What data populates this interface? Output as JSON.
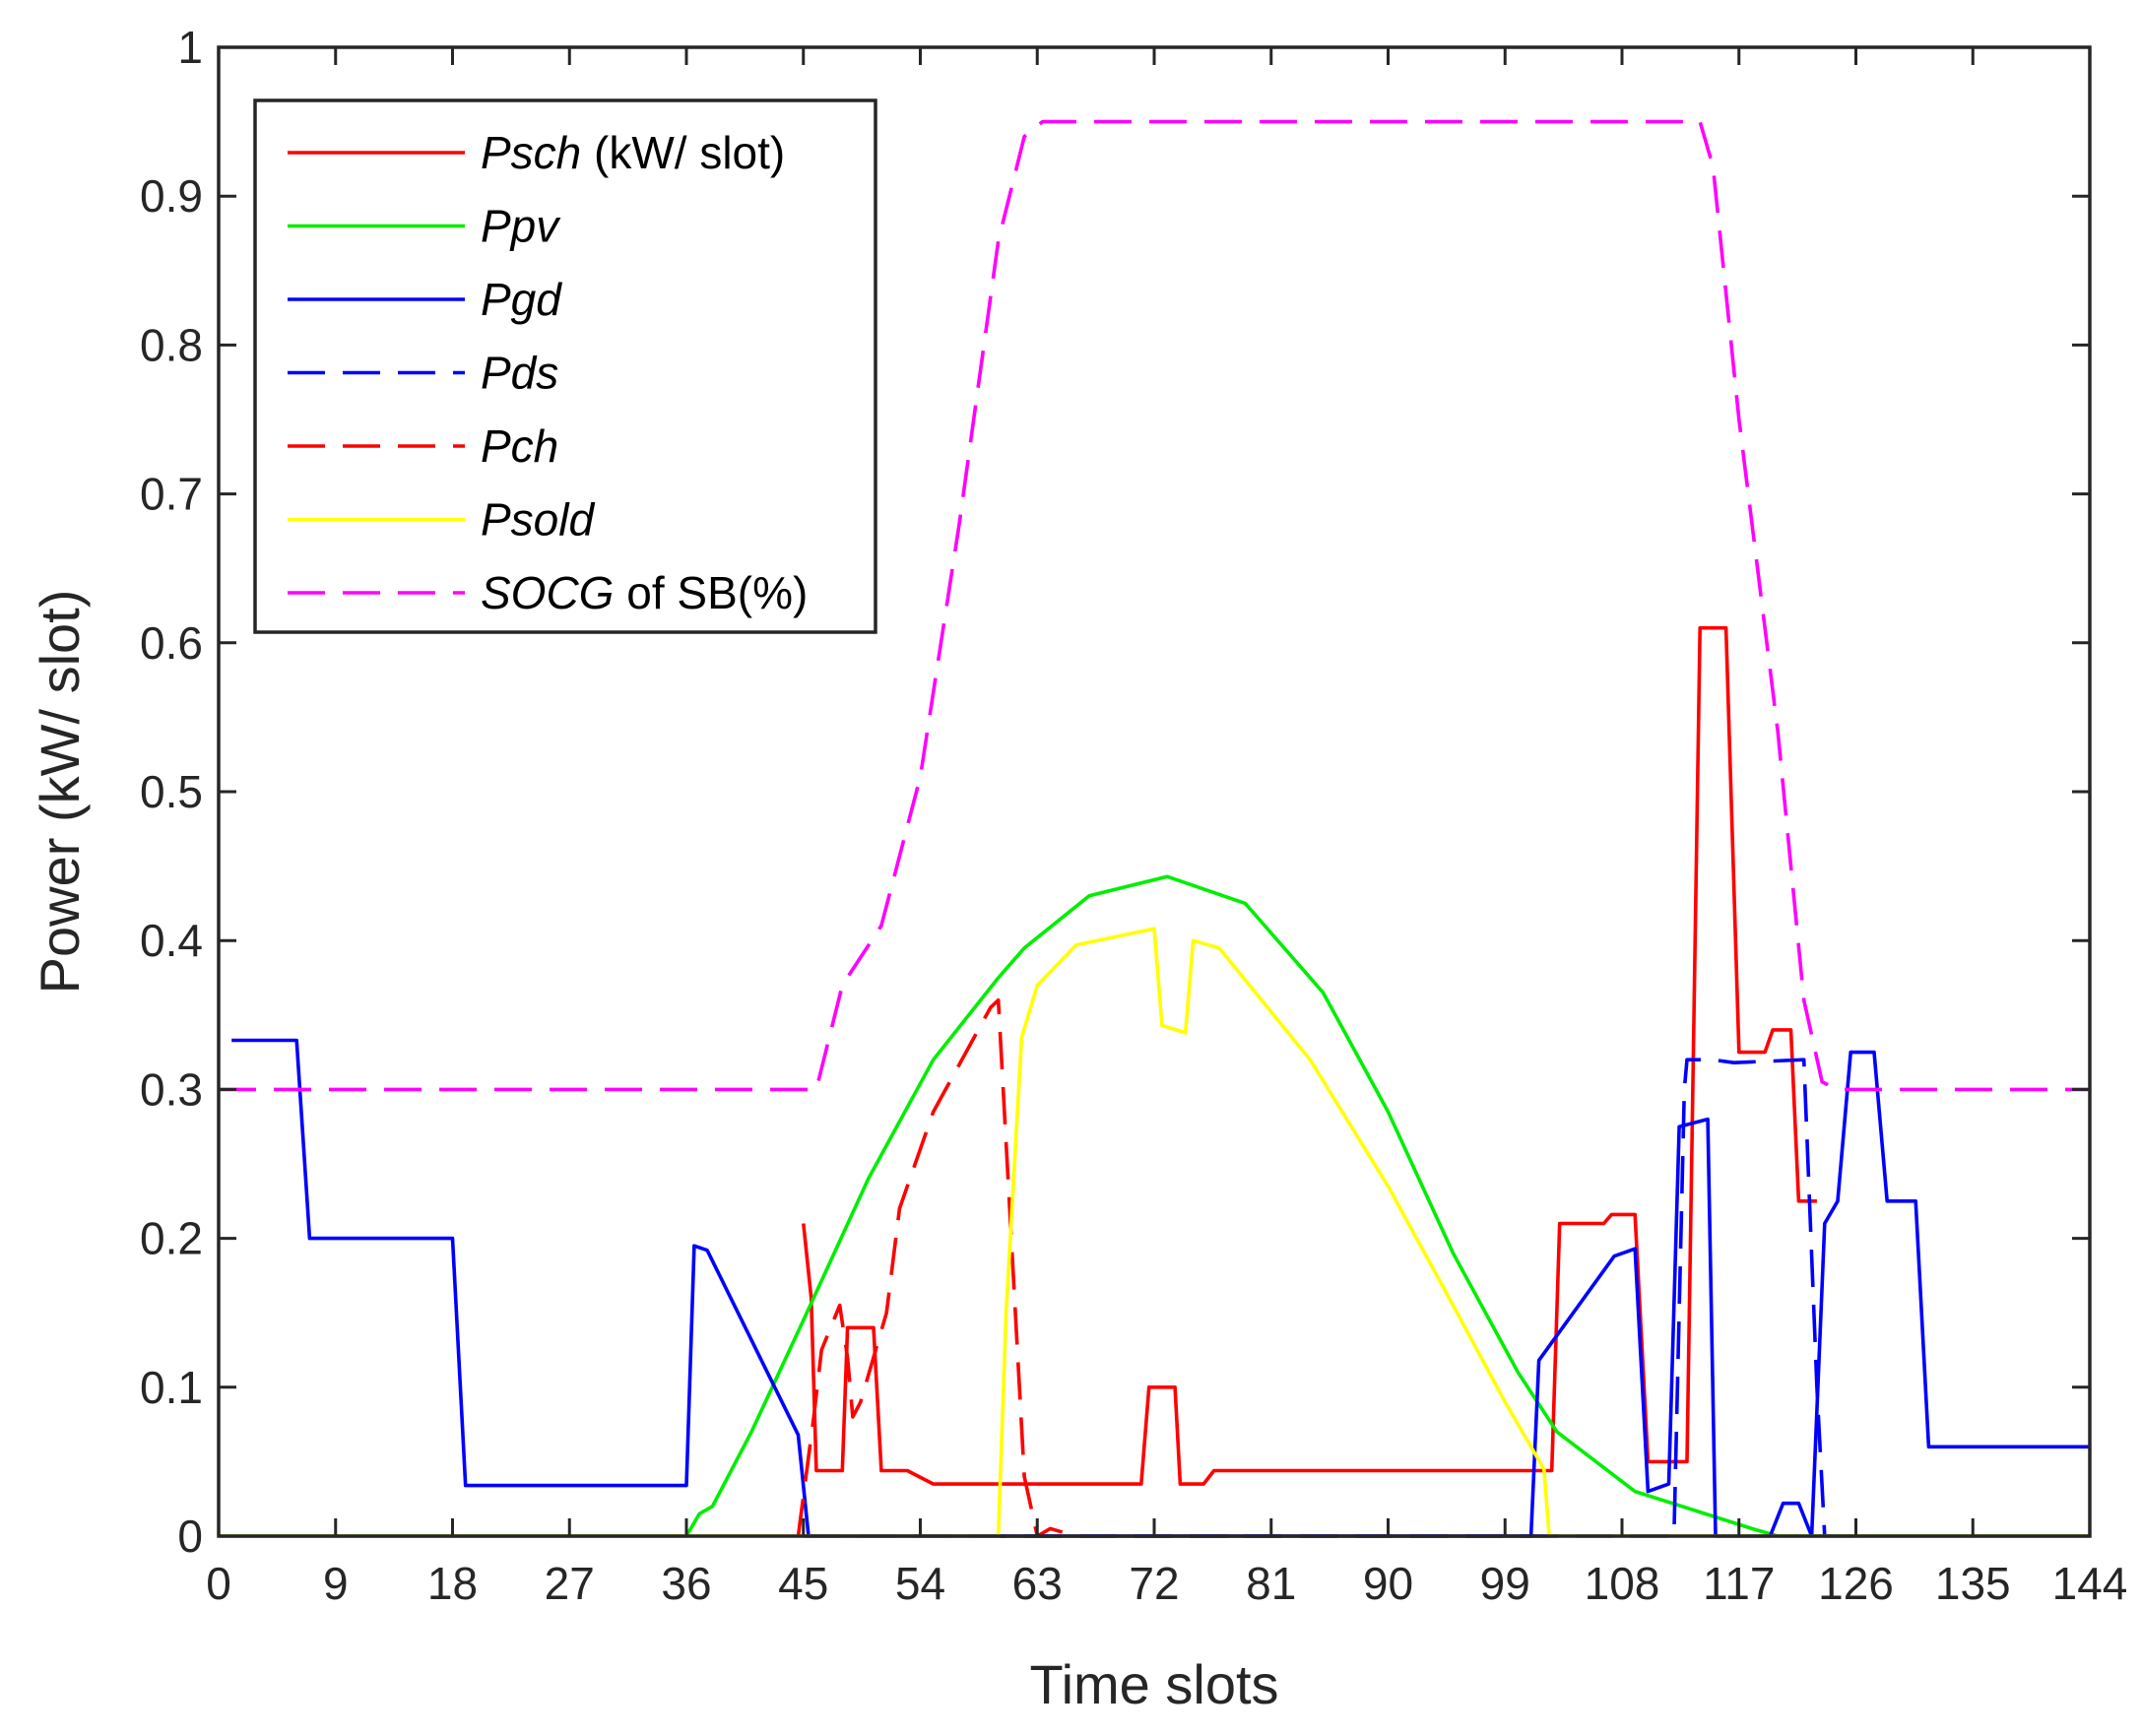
{
  "chart_data": {
    "type": "line",
    "title": "",
    "xlabel": "Time slots",
    "ylabel": "Power (kW/ slot)",
    "xlim": [
      0,
      144
    ],
    "ylim": [
      0,
      1
    ],
    "xticks": [
      0,
      9,
      18,
      27,
      36,
      45,
      54,
      63,
      72,
      81,
      90,
      99,
      108,
      117,
      126,
      135,
      144
    ],
    "yticks": [
      0,
      0.1,
      0.2,
      0.3,
      0.4,
      0.5,
      0.6,
      0.7,
      0.8,
      0.9,
      1
    ],
    "ytick_labels": [
      "0",
      "0.1",
      "0.2",
      "0.3",
      "0.4",
      "0.5",
      "0.6",
      "0.7",
      "0.8",
      "0.9",
      "1"
    ],
    "legend_position": "top-left",
    "series": [
      {
        "name": "Psch",
        "legend_italic": "Psch",
        "legend_suffix": " (kW/ slot)",
        "color": "#ff0000",
        "style": "solid",
        "points": [
          [
            45,
            0.21
          ],
          [
            45.6,
            0.16
          ],
          [
            46,
            0.044
          ],
          [
            48,
            0.044
          ],
          [
            48.4,
            0.14
          ],
          [
            50.4,
            0.14
          ],
          [
            51,
            0.044
          ],
          [
            53,
            0.044
          ],
          [
            55,
            0.035
          ],
          [
            71,
            0.035
          ],
          [
            71.6,
            0.1
          ],
          [
            73.6,
            0.1
          ],
          [
            74,
            0.035
          ],
          [
            75.8,
            0.035
          ],
          [
            76.6,
            0.044
          ],
          [
            102.6,
            0.044
          ],
          [
            103.2,
            0.21
          ],
          [
            106.6,
            0.21
          ],
          [
            107.2,
            0.216
          ],
          [
            109,
            0.216
          ],
          [
            110,
            0.05
          ],
          [
            113,
            0.05
          ],
          [
            114,
            0.61
          ],
          [
            116,
            0.61
          ],
          [
            117,
            0.325
          ],
          [
            119,
            0.325
          ],
          [
            119.6,
            0.34
          ],
          [
            121,
            0.34
          ],
          [
            121.6,
            0.225
          ],
          [
            123,
            0.225
          ]
        ]
      },
      {
        "name": "Ppv",
        "legend_italic": "Ppv",
        "legend_suffix": "",
        "color": "#00ee00",
        "style": "solid",
        "points": [
          [
            0,
            0
          ],
          [
            36,
            0
          ],
          [
            37,
            0.015
          ],
          [
            38,
            0.02
          ],
          [
            41,
            0.07
          ],
          [
            45,
            0.145
          ],
          [
            50,
            0.24
          ],
          [
            55,
            0.32
          ],
          [
            60,
            0.375
          ],
          [
            62,
            0.395
          ],
          [
            67,
            0.43
          ],
          [
            73,
            0.443
          ],
          [
            79,
            0.425
          ],
          [
            85,
            0.365
          ],
          [
            90,
            0.285
          ],
          [
            95,
            0.19
          ],
          [
            100,
            0.11
          ],
          [
            103,
            0.07
          ],
          [
            109,
            0.03
          ],
          [
            118,
            0.005
          ],
          [
            120,
            0
          ],
          [
            144,
            0
          ]
        ]
      },
      {
        "name": "Pgd",
        "legend_italic": "Pgd",
        "legend_suffix": "",
        "color": "#0000ff",
        "style": "solid",
        "points": [
          [
            1,
            0.333
          ],
          [
            6,
            0.333
          ],
          [
            7,
            0.2
          ],
          [
            18,
            0.2
          ],
          [
            19,
            0.034
          ],
          [
            36,
            0.034
          ],
          [
            36.6,
            0.195
          ],
          [
            37.6,
            0.192
          ],
          [
            44.6,
            0.068
          ],
          [
            45.4,
            0
          ],
          [
            101,
            0
          ],
          [
            101.6,
            0.118
          ],
          [
            107.4,
            0.188
          ],
          [
            109,
            0.193
          ],
          [
            110,
            0.03
          ],
          [
            111.6,
            0.035
          ],
          [
            112.4,
            0.275
          ],
          [
            114.6,
            0.28
          ],
          [
            115.2,
            0
          ],
          [
            119.4,
            0
          ],
          [
            120.4,
            0.022
          ],
          [
            121.6,
            0.022
          ],
          [
            122.6,
            0
          ],
          [
            123.6,
            0.21
          ],
          [
            124.6,
            0.225
          ],
          [
            125.6,
            0.325
          ],
          [
            127.4,
            0.325
          ],
          [
            128.4,
            0.225
          ],
          [
            130.6,
            0.225
          ],
          [
            131.6,
            0.06
          ],
          [
            144,
            0.06
          ]
        ]
      },
      {
        "name": "Pds",
        "legend_italic": "Pds",
        "legend_suffix": "",
        "color": "#0000ff",
        "style": "dashed",
        "points": [
          [
            45,
            0
          ],
          [
            112,
            0
          ],
          [
            112.8,
            0.3
          ],
          [
            113,
            0.32
          ],
          [
            115,
            0.32
          ],
          [
            116.6,
            0.318
          ],
          [
            122,
            0.32
          ],
          [
            123,
            0.1
          ],
          [
            123.6,
            0
          ],
          [
            126,
            0
          ]
        ]
      },
      {
        "name": "Pch",
        "legend_italic": "Pch",
        "legend_suffix": "",
        "color": "#ff0000",
        "style": "dashed",
        "points": [
          [
            44.6,
            0
          ],
          [
            45.8,
            0.08
          ],
          [
            46.4,
            0.125
          ],
          [
            47.8,
            0.155
          ],
          [
            48.4,
            0.12
          ],
          [
            48.8,
            0.08
          ],
          [
            49.4,
            0.09
          ],
          [
            51.4,
            0.15
          ],
          [
            52.4,
            0.22
          ],
          [
            55,
            0.285
          ],
          [
            59.4,
            0.355
          ],
          [
            60,
            0.36
          ],
          [
            61,
            0.2
          ],
          [
            62,
            0.04
          ],
          [
            63,
            0
          ],
          [
            64,
            0.005
          ],
          [
            66,
            0
          ]
        ]
      },
      {
        "name": "Psold",
        "legend_italic": "Psold",
        "legend_suffix": "",
        "color": "#ffff00",
        "style": "solid",
        "points": [
          [
            0,
            0
          ],
          [
            60,
            0
          ],
          [
            60.6,
            0.15
          ],
          [
            61.8,
            0.335
          ],
          [
            63,
            0.37
          ],
          [
            66,
            0.397
          ],
          [
            72,
            0.408
          ],
          [
            72.6,
            0.343
          ],
          [
            74.4,
            0.338
          ],
          [
            75,
            0.4
          ],
          [
            77,
            0.395
          ],
          [
            84,
            0.32
          ],
          [
            90,
            0.235
          ],
          [
            95,
            0.155
          ],
          [
            99,
            0.09
          ],
          [
            102,
            0.045
          ],
          [
            102.4,
            0
          ],
          [
            144,
            0
          ]
        ]
      },
      {
        "name": "SOCG of SB(%)",
        "legend_italic": "SOCG",
        "legend_suffix": " of SB(%)",
        "color": "#ff00ff",
        "style": "dashed",
        "points": [
          [
            0,
            0.3
          ],
          [
            46,
            0.3
          ],
          [
            48,
            0.37
          ],
          [
            51,
            0.41
          ],
          [
            54,
            0.51
          ],
          [
            57,
            0.68
          ],
          [
            60,
            0.87
          ],
          [
            62,
            0.94
          ],
          [
            63.4,
            0.95
          ],
          [
            114,
            0.95
          ],
          [
            115,
            0.92
          ],
          [
            117,
            0.75
          ],
          [
            120,
            0.54
          ],
          [
            122,
            0.36
          ],
          [
            123.4,
            0.305
          ],
          [
            124.6,
            0.3
          ],
          [
            144,
            0.3
          ]
        ]
      }
    ]
  }
}
